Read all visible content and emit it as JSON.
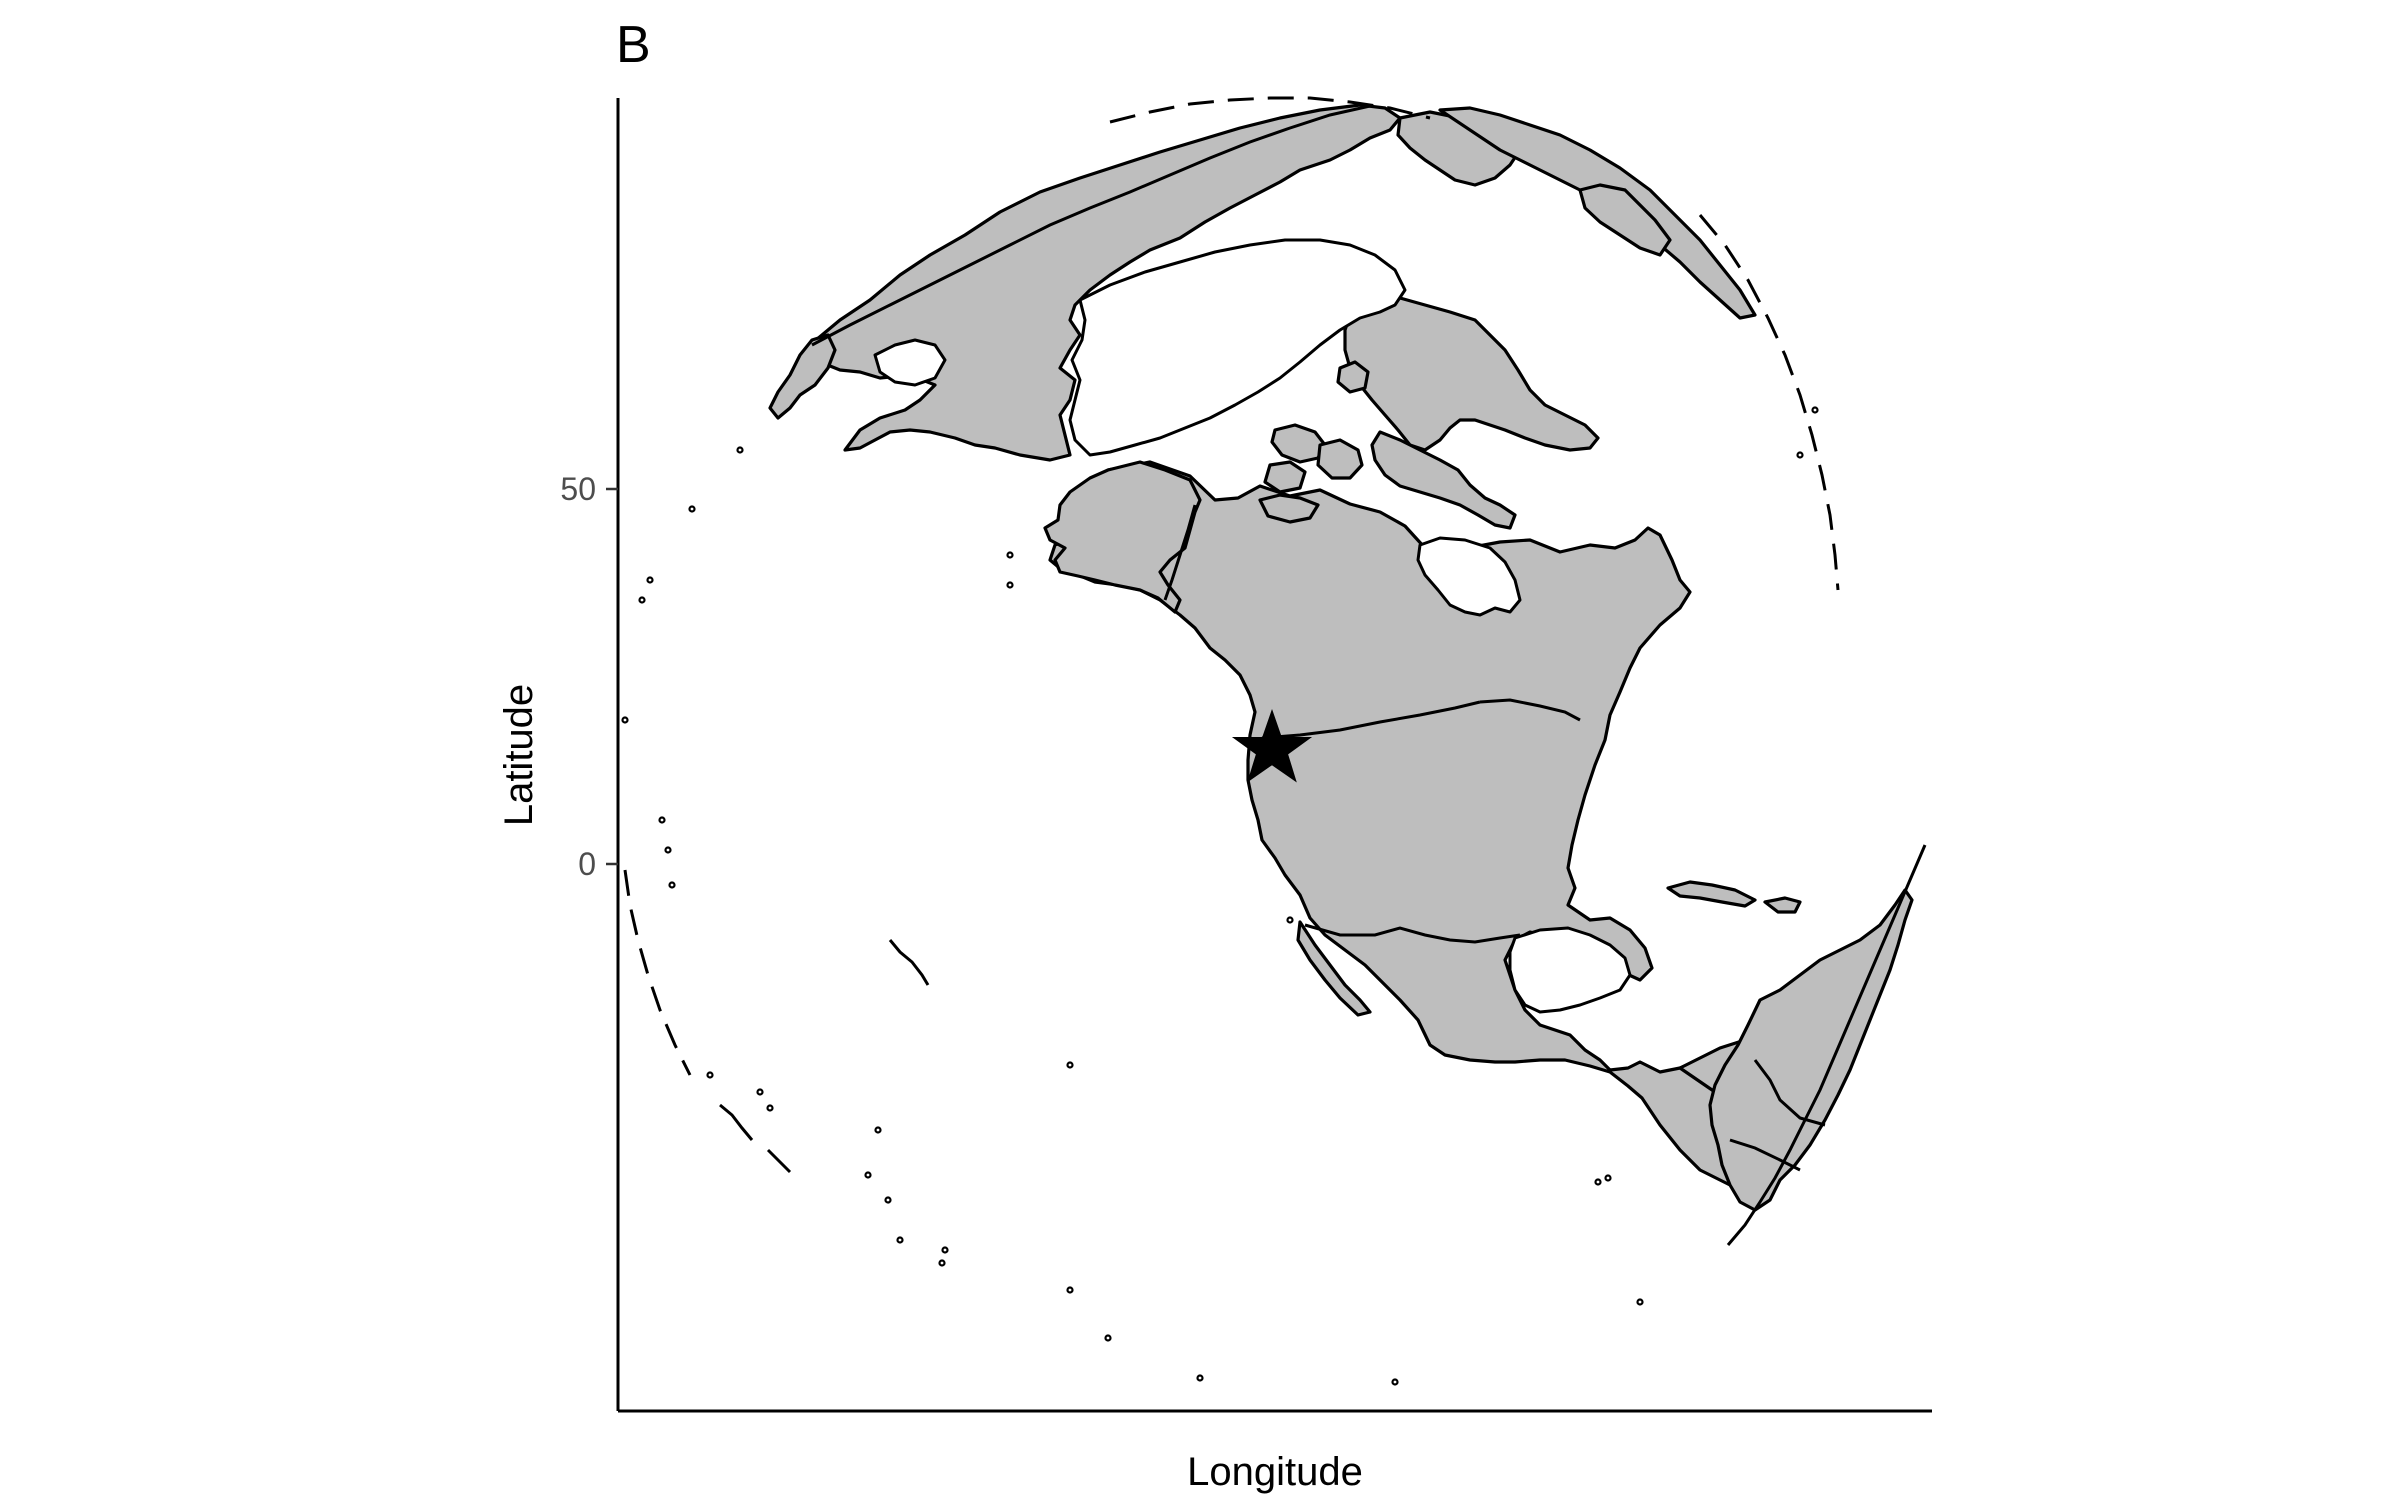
{
  "panel_tag": "B",
  "axes": {
    "x_title": "Longitude",
    "y_title": "Latitude",
    "y_ticks": [
      {
        "label": "50",
        "value": 50
      },
      {
        "label": "0",
        "value": 0
      }
    ]
  },
  "map": {
    "projection": "orthographic",
    "land_fill": "#bebebe",
    "outline_color": "#000000",
    "background": "#ffffff",
    "tick_label_color": "#4d4d4d",
    "marker": {
      "shape": "star",
      "color": "#000000"
    }
  }
}
